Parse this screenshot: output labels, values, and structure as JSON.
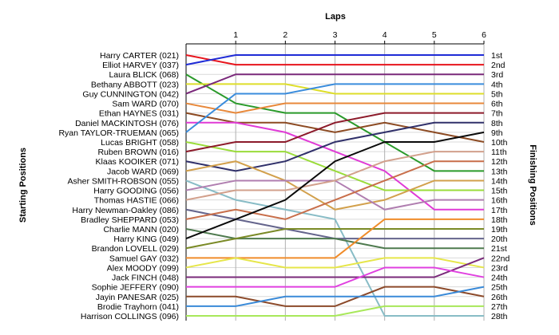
{
  "chart_data": {
    "type": "line",
    "title": "Laps",
    "xlabel": "Laps",
    "ylabel_left": "Starting Positions",
    "ylabel_right": "Finishing Positions",
    "x": [
      0,
      1,
      2,
      3,
      4,
      5,
      6
    ],
    "x_tick_labels": [
      "1",
      "2",
      "3",
      "4",
      "5",
      "6"
    ],
    "ylim": [
      1,
      28
    ],
    "y_inverted": true,
    "grid": true,
    "legend": "none",
    "starting_positions": [
      "Harry CARTER (021)",
      "Elliot HARVEY (037)",
      "Laura BLICK (068)",
      "Bethany ABBOTT (023)",
      "Guy CUNNINGTON (042)",
      "Sam WARD (070)",
      "Ethan HAYNES (031)",
      "Daniel MACKINTOSH (076)",
      "Ryan TAYLOR-TRUEMAN (065)",
      "Lucas BRIGHT (058)",
      "Ruben BROWN (016)",
      "Klaas KOOIKER (071)",
      "Jacob WARD (069)",
      "Asher SMITH-ROBSON (055)",
      "Harry GOODING (056)",
      "Thomas HASTIE (066)",
      "Harry Newman-Oakley (086)",
      "Bradley SHEPPARD (053)",
      "Charlie MANN (020)",
      "Harry KING (049)",
      "Brandon LOVELL (029)",
      "Samuel GAY (032)",
      "Alex MOODY (099)",
      "Jack FINCH (048)",
      "Sophie JEFFERY (090)",
      "Jayin PANESAR (025)",
      "Brodie Trayhorn (041)",
      "Harrison COLLINGS (096)"
    ],
    "finishing_positions": [
      "1st",
      "2nd",
      "3rd",
      "4th",
      "5th",
      "6th",
      "7th",
      "8th",
      "9th",
      "10th",
      "11th",
      "12th",
      "13th",
      "14th",
      "15th",
      "16th",
      "17th",
      "18th",
      "19th",
      "20th",
      "21st",
      "22nd",
      "23rd",
      "24th",
      "25th",
      "26th",
      "27th",
      "28th"
    ],
    "series": [
      {
        "color": "#e8141c",
        "values": [
          1,
          2,
          2,
          2,
          2,
          2,
          2
        ]
      },
      {
        "color": "#1f2bd6",
        "values": [
          2,
          1,
          1,
          1,
          1,
          1,
          1
        ]
      },
      {
        "color": "#2a9a2a",
        "values": [
          3,
          6,
          7,
          7,
          10,
          13,
          13
        ]
      },
      {
        "color": "#dede2a",
        "values": [
          4,
          4,
          4,
          5,
          5,
          5,
          5
        ]
      },
      {
        "color": "#7a287a",
        "values": [
          5,
          3,
          3,
          3,
          3,
          3,
          3
        ]
      },
      {
        "color": "#e8883a",
        "values": [
          6,
          7,
          6,
          6,
          6,
          6,
          6
        ]
      },
      {
        "color": "#8c4a22",
        "values": [
          7,
          8,
          8,
          9,
          8,
          9,
          10
        ]
      },
      {
        "color": "#e03ad6",
        "values": [
          8,
          8,
          9,
          11,
          13,
          17,
          17
        ]
      },
      {
        "color": "#3a8cdc",
        "values": [
          9,
          5,
          5,
          4,
          4,
          4,
          4
        ]
      },
      {
        "color": "#9adc3a",
        "values": [
          10,
          11,
          11,
          13,
          15,
          15,
          15
        ]
      },
      {
        "color": "#8c1a2a",
        "values": [
          11,
          10,
          10,
          8,
          7,
          7,
          7
        ]
      },
      {
        "color": "#30306a",
        "values": [
          12,
          13,
          12,
          10,
          9,
          8,
          8
        ]
      },
      {
        "color": "#d2a04c",
        "values": [
          13,
          12,
          14,
          17,
          16,
          14,
          14
        ]
      },
      {
        "color": "#88bcc6",
        "values": [
          14,
          16,
          17,
          18,
          28,
          28,
          28
        ]
      },
      {
        "color": "#b07eb0",
        "values": [
          15,
          14,
          14,
          14,
          17,
          16,
          16
        ]
      },
      {
        "color": "#d2a08c",
        "values": [
          16,
          15,
          15,
          14,
          12,
          11,
          11
        ]
      },
      {
        "color": "#64648c",
        "values": [
          17,
          18,
          19,
          20,
          20,
          20,
          20
        ]
      },
      {
        "color": "#c86e4a",
        "values": [
          18,
          17,
          18,
          16,
          14,
          12,
          12
        ]
      },
      {
        "color": "#4e7a4e",
        "values": [
          19,
          20,
          20,
          20,
          21,
          21,
          21
        ]
      },
      {
        "color": "#0a0a0a",
        "values": [
          20,
          18,
          16,
          12,
          10,
          10,
          9
        ]
      },
      {
        "color": "#7a8a26",
        "values": [
          21,
          20,
          19,
          19,
          19,
          19,
          19
        ]
      },
      {
        "color": "#f08c2a",
        "values": [
          22,
          22,
          22,
          22,
          18,
          18,
          18
        ]
      },
      {
        "color": "#e6e64a",
        "values": [
          23,
          22,
          23,
          23,
          22,
          22,
          23
        ]
      },
      {
        "color": "#7a2a7a",
        "values": [
          24,
          24,
          24,
          24,
          24,
          24,
          22
        ]
      },
      {
        "color": "#e040e0",
        "values": [
          25,
          25,
          25,
          25,
          23,
          23,
          24
        ]
      },
      {
        "color": "#8c4a2a",
        "values": [
          26,
          26,
          27,
          27,
          25,
          25,
          26
        ]
      },
      {
        "color": "#3a8ad8",
        "values": [
          27,
          27,
          26,
          26,
          26,
          26,
          25
        ]
      },
      {
        "color": "#a8e85a",
        "values": [
          28,
          28,
          28,
          28,
          27,
          27,
          27
        ]
      }
    ]
  }
}
